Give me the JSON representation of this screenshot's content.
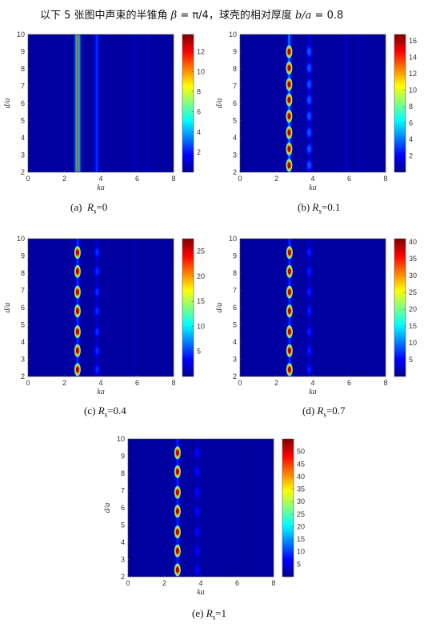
{
  "header": {
    "prefix": "以下 5 张图中声束的半锥角 ",
    "beta_sym": "β",
    "beta_val": " = π/4",
    "mid": "，球壳的相对厚度 ",
    "ratio_sym": "b/a",
    "ratio_val": " = 0.8"
  },
  "colors": {
    "colormap": [
      "#00008f",
      "#0000ff",
      "#0080ff",
      "#00ffff",
      "#80ff80",
      "#ffff00",
      "#ff8000",
      "#ff0000",
      "#800000"
    ]
  },
  "chart_data": [
    {
      "type": "heatmap",
      "caption_label": "(a)",
      "caption_sym": "R",
      "caption_sub": "s",
      "caption_val": "=0",
      "xlabel": "ka",
      "ylabel": "d/a",
      "xlim": [
        0,
        8
      ],
      "ylim": [
        2,
        10
      ],
      "xticks": [
        "0",
        "2",
        "4",
        "6",
        "8"
      ],
      "yticks": [
        "2",
        "3",
        "4",
        "5",
        "6",
        "7",
        "8",
        "9",
        "10"
      ],
      "colorbar_max": 13.7,
      "colorbar_ticks": [
        "2",
        "4",
        "6",
        "8",
        "10",
        "12"
      ],
      "colorbar_tick_values": [
        2,
        4,
        6,
        8,
        10,
        12
      ],
      "ridges": [
        {
          "ka": 2.73,
          "width": 0.07,
          "peak": 13.7,
          "spots": false
        },
        {
          "ka": 3.78,
          "width": 0.09,
          "peak": 3.0,
          "spots": false
        },
        {
          "ka": 5.85,
          "width": 0.12,
          "peak": 0.9,
          "spots": false
        },
        {
          "ka": 6.55,
          "width": 0.12,
          "peak": 0.8,
          "spots": false
        }
      ]
    },
    {
      "type": "heatmap",
      "caption_label": "(b)",
      "caption_sym": "R",
      "caption_sub": "s",
      "caption_val": "=0.1",
      "xlabel": "ka",
      "ylabel": "d/a",
      "xlim": [
        0,
        8
      ],
      "ylim": [
        2,
        10
      ],
      "xticks": [
        "0",
        "2",
        "4",
        "6",
        "8"
      ],
      "yticks": [
        "2",
        "3",
        "4",
        "5",
        "6",
        "7",
        "8",
        "9",
        "10"
      ],
      "colorbar_max": 16.8,
      "colorbar_ticks": [
        "2",
        "4",
        "6",
        "8",
        "10",
        "12",
        "14",
        "16"
      ],
      "colorbar_tick_values": [
        2,
        4,
        6,
        8,
        10,
        12,
        14,
        16
      ],
      "spot_d": [
        2.4,
        3.35,
        4.3,
        5.25,
        6.2,
        7.1,
        8.05,
        9.0
      ],
      "ridges": [
        {
          "ka": 2.7,
          "width": 0.08,
          "peak": 10.0,
          "spots": true
        },
        {
          "ka": 3.8,
          "width": 0.09,
          "peak": 3.5,
          "spots": true
        },
        {
          "ka": 5.85,
          "width": 0.12,
          "peak": 1.0,
          "spots": false
        },
        {
          "ka": 6.55,
          "width": 0.12,
          "peak": 0.9,
          "spots": false
        }
      ]
    },
    {
      "type": "heatmap",
      "caption_label": "(c)",
      "caption_sym": "R",
      "caption_sub": "s",
      "caption_val": "=0.4",
      "xlabel": "ka",
      "ylabel": "d/a",
      "xlim": [
        0,
        8
      ],
      "ylim": [
        2,
        10
      ],
      "xticks": [
        "0",
        "2",
        "4",
        "6",
        "8"
      ],
      "yticks": [
        "2",
        "3",
        "4",
        "5",
        "6",
        "7",
        "8",
        "9",
        "10"
      ],
      "colorbar_max": 27.5,
      "colorbar_ticks": [
        "5",
        "10",
        "15",
        "20",
        "25"
      ],
      "colorbar_tick_values": [
        5,
        10,
        15,
        20,
        25
      ],
      "spot_d": [
        2.4,
        3.5,
        4.6,
        5.8,
        6.9,
        8.1,
        9.2
      ],
      "ridges": [
        {
          "ka": 2.72,
          "width": 0.09,
          "peak": 11.0,
          "spots": true
        },
        {
          "ka": 3.8,
          "width": 0.09,
          "peak": 4.5,
          "spots": true
        },
        {
          "ka": 5.85,
          "width": 0.12,
          "peak": 1.2,
          "spots": false
        },
        {
          "ka": 6.5,
          "width": 0.12,
          "peak": 1.0,
          "spots": false
        }
      ]
    },
    {
      "type": "heatmap",
      "caption_label": "(d)",
      "caption_sym": "R",
      "caption_sub": "s",
      "caption_val": "=0.7",
      "xlabel": "ka",
      "ylabel": "d/a",
      "xlim": [
        0,
        8
      ],
      "ylim": [
        2,
        10
      ],
      "xticks": [
        "0",
        "2",
        "4",
        "6",
        "8"
      ],
      "yticks": [
        "2",
        "3",
        "4",
        "5",
        "6",
        "7",
        "8",
        "9",
        "10"
      ],
      "colorbar_max": 41,
      "colorbar_ticks": [
        "5",
        "10",
        "15",
        "20",
        "25",
        "30",
        "35",
        "40"
      ],
      "colorbar_tick_values": [
        5,
        10,
        15,
        20,
        25,
        30,
        35,
        40
      ],
      "spot_d": [
        2.4,
        3.5,
        4.6,
        5.8,
        6.9,
        8.1,
        9.2
      ],
      "ridges": [
        {
          "ka": 2.72,
          "width": 0.09,
          "peak": 16.0,
          "spots": true
        },
        {
          "ka": 3.8,
          "width": 0.09,
          "peak": 6.0,
          "spots": true
        },
        {
          "ka": 5.85,
          "width": 0.12,
          "peak": 1.5,
          "spots": false
        },
        {
          "ka": 6.5,
          "width": 0.12,
          "peak": 1.3,
          "spots": false
        }
      ]
    },
    {
      "type": "heatmap",
      "caption_label": "(e)",
      "caption_sym": "R",
      "caption_sub": "s",
      "caption_val": "=1",
      "xlabel": "ka",
      "ylabel": "d/a",
      "xlim": [
        0,
        8
      ],
      "ylim": [
        2,
        10
      ],
      "xticks": [
        "0",
        "2",
        "4",
        "6",
        "8"
      ],
      "yticks": [
        "2",
        "3",
        "4",
        "5",
        "6",
        "7",
        "8",
        "9",
        "10"
      ],
      "colorbar_max": 55,
      "colorbar_ticks": [
        "5",
        "10",
        "15",
        "20",
        "25",
        "30",
        "35",
        "40",
        "45",
        "50"
      ],
      "colorbar_tick_values": [
        5,
        10,
        15,
        20,
        25,
        30,
        35,
        40,
        45,
        50
      ],
      "spot_d": [
        2.4,
        3.5,
        4.6,
        5.8,
        6.9,
        8.1,
        9.2
      ],
      "ridges": [
        {
          "ka": 2.72,
          "width": 0.09,
          "peak": 20.0,
          "spots": true
        },
        {
          "ka": 3.8,
          "width": 0.09,
          "peak": 7.0,
          "spots": true
        },
        {
          "ka": 5.85,
          "width": 0.12,
          "peak": 1.8,
          "spots": false
        },
        {
          "ka": 6.5,
          "width": 0.12,
          "peak": 1.5,
          "spots": false
        }
      ]
    }
  ]
}
